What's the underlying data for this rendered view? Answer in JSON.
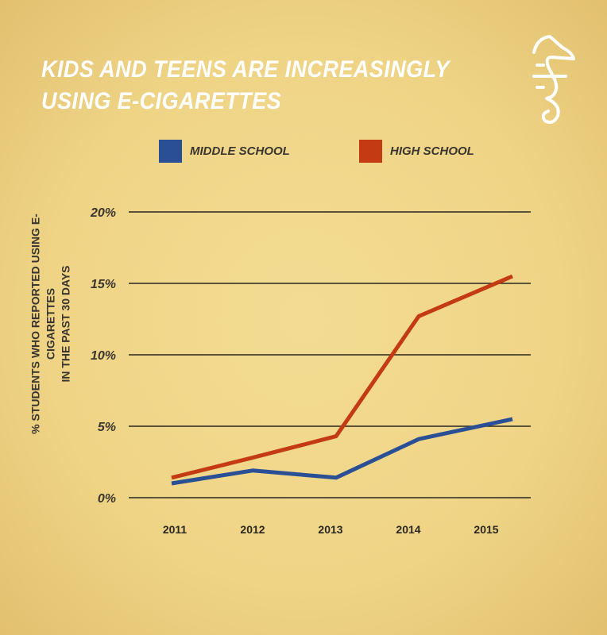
{
  "title_line1": "KIDS AND TEENS ARE INCREASINGLY",
  "title_line2": "USING E-CIGARETTES",
  "logo": "seahorse-logo",
  "chart_data": {
    "type": "line",
    "categories": [
      "2011",
      "2012",
      "2013",
      "2014",
      "2015"
    ],
    "ylabel_line1": "% STUDENTS WHO REPORTED USING E-CIGARETTES",
    "ylabel_line2": "IN THE PAST 30 DAYS",
    "ylim": [
      0,
      20
    ],
    "yticks": [
      0,
      5,
      10,
      15,
      20
    ],
    "ytick_labels": [
      "0%",
      "5%",
      "10%",
      "15%",
      "20%"
    ],
    "grid": true,
    "legend_position": "top",
    "series": [
      {
        "name": "MIDDLE SCHOOL",
        "color": "#2a4f94",
        "values": [
          1.0,
          1.9,
          1.4,
          4.1,
          5.5
        ]
      },
      {
        "name": "HIGH SCHOOL",
        "color": "#c43a12",
        "values": [
          1.4,
          2.8,
          4.3,
          12.7,
          15.5
        ]
      }
    ]
  }
}
